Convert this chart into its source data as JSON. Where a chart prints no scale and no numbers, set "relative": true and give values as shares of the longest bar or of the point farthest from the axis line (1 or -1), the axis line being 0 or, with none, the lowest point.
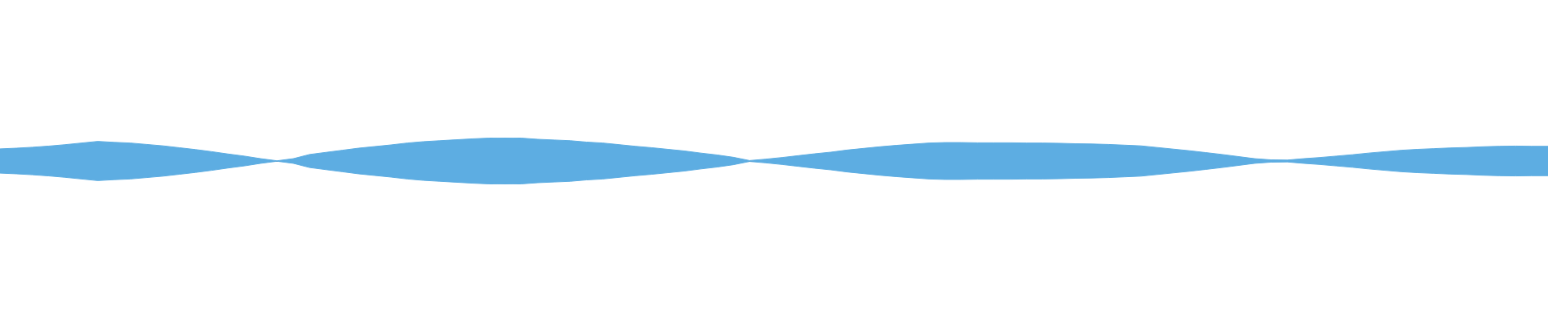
{
  "chart_data": {
    "type": "area",
    "relative": true,
    "categories": [
      null,
      null,
      null,
      null,
      null,
      null,
      null,
      null,
      null,
      null,
      null,
      null,
      null,
      null,
      null,
      null,
      null,
      null,
      null,
      null,
      null,
      null,
      null,
      null,
      null,
      null,
      null,
      null,
      null,
      null,
      null,
      null,
      null,
      null,
      null,
      null,
      null,
      null,
      null,
      null,
      null,
      null,
      null,
      null,
      null,
      null,
      null,
      null,
      null,
      null,
      null,
      null,
      null,
      null,
      null,
      null,
      null,
      null,
      null,
      null,
      null,
      null,
      null,
      null,
      null,
      null,
      null,
      null,
      null,
      null,
      null,
      null,
      null,
      null,
      null,
      null,
      null,
      null,
      null,
      null,
      null,
      null,
      null,
      null,
      null,
      null,
      null,
      null,
      null,
      null,
      null,
      null,
      null,
      null,
      null,
      null
    ],
    "series": [
      {
        "color": "#5dade2",
        "values": [
          0.52,
          0.55,
          0.59,
          0.64,
          0.7,
          0.77,
          0.84,
          0.8,
          0.77,
          0.71,
          0.65,
          0.57,
          0.49,
          0.4,
          0.3,
          0.21,
          0.1,
          0.01,
          0.1,
          0.28,
          0.37,
          0.46,
          0.55,
          0.62,
          0.69,
          0.77,
          0.83,
          0.87,
          0.91,
          0.95,
          0.98,
          1,
          0.98,
          0.93,
          0.9,
          0.87,
          0.81,
          0.77,
          0.7,
          0.63,
          0.57,
          0.5,
          0.43,
          0.34,
          0.26,
          0.16,
          0.02,
          0.08,
          0.15,
          0.23,
          0.31,
          0.38,
          0.47,
          0.54,
          0.61,
          0.67,
          0.72,
          0.77,
          0.79,
          0.79,
          0.78,
          0.78,
          0.78,
          0.77,
          0.77,
          0.76,
          0.74,
          0.73,
          0.71,
          0.68,
          0.65,
          0.58,
          0.51,
          0.44,
          0.36,
          0.28,
          0.19,
          0.1,
          0.05,
          0.04,
          0.1,
          0.15,
          0.21,
          0.27,
          0.34,
          0.4,
          0.46,
          0.5,
          0.53,
          0.56,
          0.58,
          0.61,
          0.63,
          0.64,
          0.63,
          0.63
        ]
      },
      {
        "color": "#5dade2",
        "values": [
          -0.52,
          -0.55,
          -0.59,
          -0.64,
          -0.7,
          -0.77,
          -0.84,
          -0.8,
          -0.77,
          -0.71,
          -0.65,
          -0.57,
          -0.49,
          -0.4,
          -0.3,
          -0.21,
          -0.1,
          -0.01,
          -0.1,
          -0.28,
          -0.37,
          -0.46,
          -0.55,
          -0.62,
          -0.69,
          -0.77,
          -0.83,
          -0.87,
          -0.91,
          -0.95,
          -0.98,
          -1,
          -0.98,
          -0.93,
          -0.9,
          -0.87,
          -0.81,
          -0.77,
          -0.7,
          -0.63,
          -0.57,
          -0.5,
          -0.43,
          -0.34,
          -0.26,
          -0.16,
          -0.02,
          -0.08,
          -0.15,
          -0.23,
          -0.31,
          -0.38,
          -0.47,
          -0.54,
          -0.61,
          -0.67,
          -0.72,
          -0.77,
          -0.79,
          -0.79,
          -0.78,
          -0.78,
          -0.78,
          -0.77,
          -0.77,
          -0.76,
          -0.74,
          -0.73,
          -0.71,
          -0.68,
          -0.65,
          -0.58,
          -0.51,
          -0.44,
          -0.36,
          -0.28,
          -0.19,
          -0.1,
          -0.05,
          -0.04,
          -0.1,
          -0.15,
          -0.21,
          -0.27,
          -0.34,
          -0.4,
          -0.46,
          -0.5,
          -0.53,
          -0.56,
          -0.58,
          -0.61,
          -0.63,
          -0.64,
          -0.63,
          -0.63
        ]
      }
    ]
  }
}
